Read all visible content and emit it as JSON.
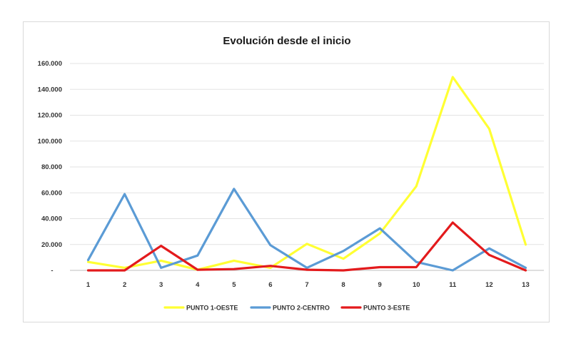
{
  "chart_data": {
    "type": "line",
    "title": "Evolución desde el inicio",
    "xlabel": "",
    "ylabel": "",
    "categories": [
      "1",
      "2",
      "3",
      "4",
      "5",
      "6",
      "7",
      "8",
      "9",
      "10",
      "11",
      "12",
      "13"
    ],
    "ylim": [
      0,
      160000
    ],
    "yticks": [
      {
        "value": 0,
        "label": "-"
      },
      {
        "value": 20000,
        "label": "20.000"
      },
      {
        "value": 40000,
        "label": "40.000"
      },
      {
        "value": 60000,
        "label": "60.000"
      },
      {
        "value": 80000,
        "label": "80.000"
      },
      {
        "value": 100000,
        "label": "100.000"
      },
      {
        "value": 120000,
        "label": "120.000"
      },
      {
        "value": 140000,
        "label": "140.000"
      },
      {
        "value": 160000,
        "label": "160.000"
      }
    ],
    "grid": true,
    "legend_position": "bottom",
    "series": [
      {
        "name": "PUNTO 1-OESTE",
        "color": "#ffff33",
        "values": [
          6500,
          2000,
          7500,
          500,
          7500,
          2000,
          20500,
          9000,
          28500,
          65000,
          149500,
          109500,
          20000
        ]
      },
      {
        "name": "PUNTO 2-CENTRO",
        "color": "#5b9bd5",
        "values": [
          8000,
          59000,
          2000,
          11500,
          63000,
          19500,
          2000,
          15000,
          32500,
          6500,
          0,
          17000,
          2000
        ]
      },
      {
        "name": "PUNTO 3-ESTE",
        "color": "#e31a1c",
        "values": [
          0,
          0,
          19000,
          500,
          1000,
          3500,
          500,
          0,
          2500,
          2500,
          37000,
          12000,
          0
        ]
      }
    ]
  }
}
